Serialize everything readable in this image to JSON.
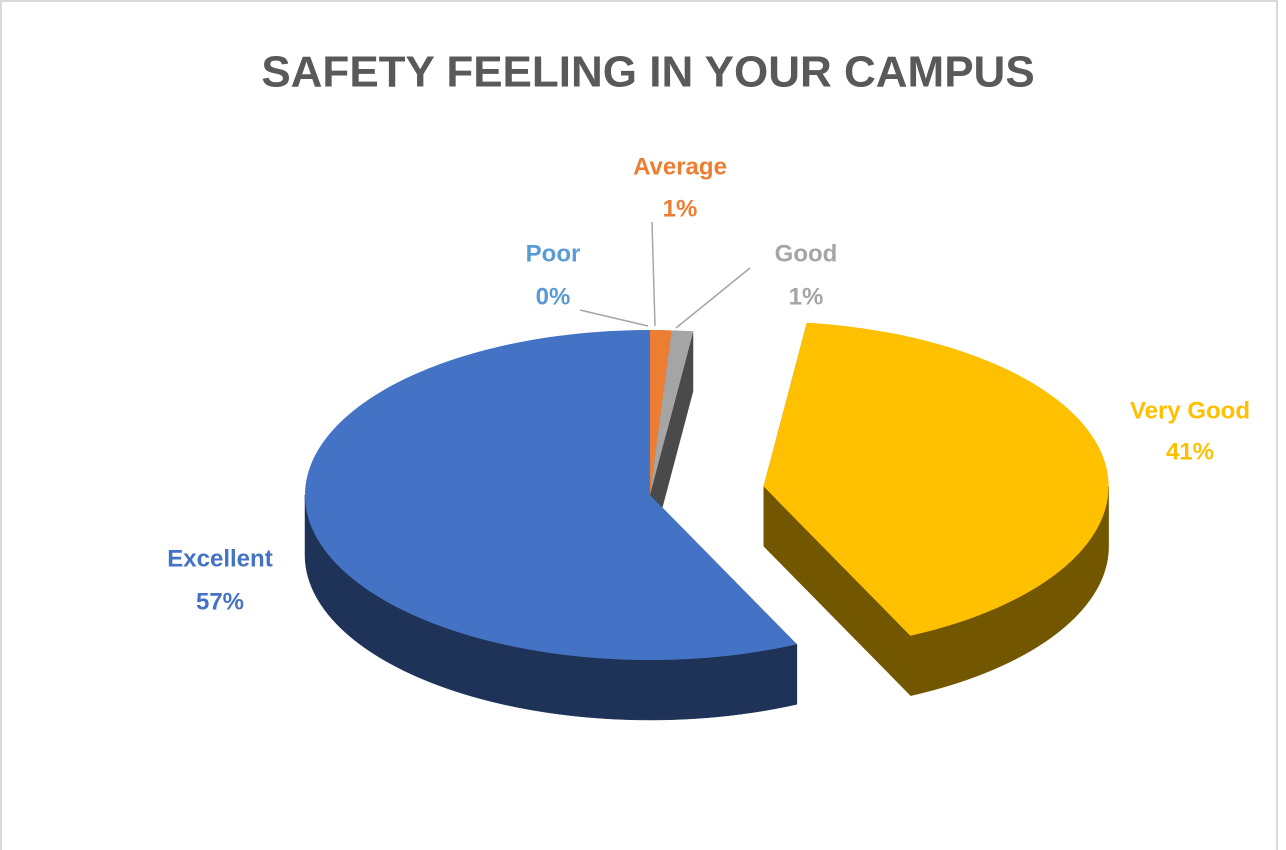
{
  "chart_data": {
    "type": "pie",
    "title": "SAFETY FEELING IN YOUR CAMPUS",
    "categories": [
      "Poor",
      "Average",
      "Good",
      "Very Good",
      "Excellent"
    ],
    "values": [
      0,
      1,
      1,
      41,
      57
    ],
    "value_labels": [
      "0%",
      "1%",
      "1%",
      "41%",
      "57%"
    ],
    "colors": [
      "#5b9bd5",
      "#ed7d31",
      "#a5a5a5",
      "#ffc000",
      "#4472c4"
    ]
  }
}
